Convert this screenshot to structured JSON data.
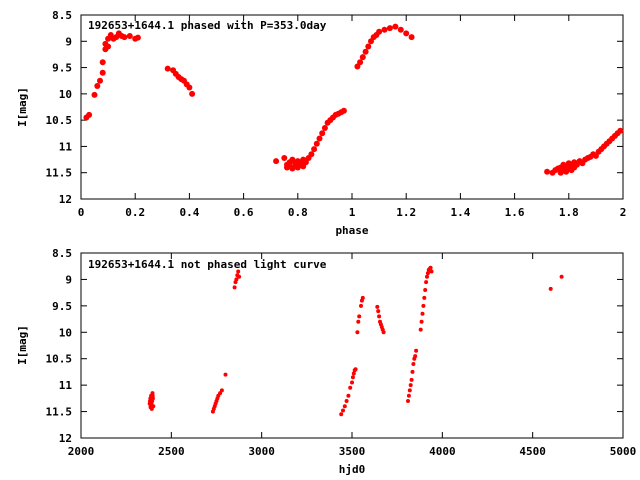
{
  "chart_data": [
    {
      "type": "scatter",
      "title": "192653+1644.1 phased with P=353.0day",
      "xlabel": "phase",
      "ylabel": "I[mag]",
      "xlim": [
        0,
        2
      ],
      "ylim": [
        8.5,
        12
      ],
      "y_inverted": true,
      "xticks": [
        "0",
        "0.2",
        "0.4",
        "0.6",
        "0.8",
        "1",
        "1.2",
        "1.4",
        "1.6",
        "1.8",
        "2"
      ],
      "yticks": [
        "8.5",
        "9",
        "9.5",
        "10",
        "10.5",
        "11",
        "11.5",
        "12"
      ],
      "marker_color": "#ff0000",
      "series": [
        {
          "x": [
            0.02,
            0.03,
            0.05,
            0.06,
            0.07,
            0.08,
            0.08,
            0.09,
            0.09,
            0.1,
            0.1,
            0.11,
            0.12,
            0.13,
            0.14,
            0.15,
            0.16,
            0.18,
            0.2,
            0.21,
            0.32,
            0.34,
            0.35,
            0.36,
            0.37,
            0.38,
            0.39,
            0.4,
            0.41,
            0.72,
            0.75,
            0.76,
            0.76,
            0.77,
            0.77,
            0.78,
            0.78,
            0.79,
            0.79,
            0.8,
            0.8,
            0.81,
            0.81,
            0.82,
            0.82,
            0.83,
            0.84,
            0.85,
            0.86,
            0.87,
            0.88,
            0.89,
            0.9,
            0.91,
            0.92,
            0.93,
            0.94,
            0.95,
            0.96,
            0.97,
            1.02,
            1.03,
            1.04,
            1.05,
            1.06,
            1.07,
            1.08,
            1.09,
            1.1,
            1.12,
            1.14,
            1.16,
            1.18,
            1.2,
            1.22,
            1.72,
            1.74,
            1.75,
            1.76,
            1.77,
            1.77,
            1.78,
            1.78,
            1.79,
            1.79,
            1.8,
            1.8,
            1.81,
            1.81,
            1.82,
            1.82,
            1.83,
            1.84,
            1.85,
            1.86,
            1.87,
            1.88,
            1.89,
            1.9,
            1.91,
            1.92,
            1.93,
            1.94,
            1.95,
            1.96,
            1.97,
            1.98,
            1.99
          ],
          "y": [
            10.45,
            10.4,
            10.02,
            9.85,
            9.75,
            9.6,
            9.4,
            9.15,
            9.05,
            8.95,
            9.1,
            8.88,
            8.95,
            8.92,
            8.85,
            8.9,
            8.92,
            8.9,
            8.95,
            8.93,
            9.52,
            9.55,
            9.62,
            9.68,
            9.72,
            9.75,
            9.82,
            9.88,
            10.0,
            11.28,
            11.22,
            11.35,
            11.4,
            11.3,
            11.38,
            11.25,
            11.42,
            11.32,
            11.38,
            11.28,
            11.4,
            11.35,
            11.3,
            11.38,
            11.25,
            11.3,
            11.22,
            11.15,
            11.05,
            10.95,
            10.85,
            10.75,
            10.65,
            10.55,
            10.5,
            10.45,
            10.4,
            10.38,
            10.35,
            10.32,
            9.48,
            9.4,
            9.3,
            9.2,
            9.1,
            9.0,
            8.92,
            8.88,
            8.82,
            8.78,
            8.75,
            8.72,
            8.78,
            8.85,
            8.92,
            11.48,
            11.5,
            11.45,
            11.42,
            11.5,
            11.4,
            11.45,
            11.35,
            11.48,
            11.4,
            11.42,
            11.32,
            11.45,
            11.38,
            11.4,
            11.3,
            11.35,
            11.28,
            11.32,
            11.25,
            11.22,
            11.2,
            11.15,
            11.18,
            11.1,
            11.05,
            11.0,
            10.95,
            10.9,
            10.85,
            10.8,
            10.75,
            10.7
          ]
        }
      ]
    },
    {
      "type": "scatter",
      "title": "192653+1644.1 not phased light curve",
      "xlabel": "hjd0",
      "ylabel": "I[mag]",
      "xlim": [
        2000,
        5000
      ],
      "ylim": [
        8.5,
        12
      ],
      "y_inverted": true,
      "xticks": [
        "2000",
        "2500",
        "3000",
        "3500",
        "4000",
        "4500",
        "5000"
      ],
      "yticks": [
        "8.5",
        "9",
        "9.5",
        "10",
        "10.5",
        "11",
        "11.5",
        "12"
      ],
      "marker_color": "#ff0000",
      "series": [
        {
          "x": [
            2380,
            2382,
            2384,
            2386,
            2388,
            2390,
            2392,
            2394,
            2396,
            2398,
            2400,
            2385,
            2391,
            2397,
            2730,
            2735,
            2740,
            2745,
            2750,
            2755,
            2760,
            2770,
            2780,
            2800,
            2850,
            2855,
            2860,
            2865,
            2870,
            2875,
            3440,
            3450,
            3460,
            3470,
            3480,
            3490,
            3500,
            3505,
            3510,
            3515,
            3520,
            3530,
            3535,
            3540,
            3550,
            3555,
            3560,
            3640,
            3645,
            3650,
            3655,
            3660,
            3665,
            3670,
            3675,
            3810,
            3815,
            3820,
            3825,
            3830,
            3835,
            3840,
            3845,
            3850,
            3855,
            3880,
            3885,
            3890,
            3895,
            3900,
            3905,
            3910,
            3915,
            3920,
            3925,
            3930,
            3935,
            3940,
            4600,
            4660
          ],
          "y": [
            11.35,
            11.3,
            11.25,
            11.4,
            11.2,
            11.35,
            11.45,
            11.3,
            11.15,
            11.25,
            11.4,
            11.42,
            11.28,
            11.2,
            11.5,
            11.45,
            11.4,
            11.35,
            11.3,
            11.25,
            11.2,
            11.15,
            11.1,
            10.8,
            9.15,
            9.05,
            9.0,
            8.92,
            8.85,
            8.95,
            11.55,
            11.48,
            11.4,
            11.3,
            11.2,
            11.05,
            10.95,
            10.85,
            10.78,
            10.72,
            10.7,
            10.0,
            9.8,
            9.7,
            9.5,
            9.4,
            9.35,
            9.52,
            9.6,
            9.7,
            9.8,
            9.85,
            9.9,
            9.95,
            10.0,
            11.3,
            11.2,
            11.1,
            11.0,
            10.9,
            10.75,
            10.6,
            10.5,
            10.45,
            10.35,
            9.95,
            9.8,
            9.65,
            9.5,
            9.35,
            9.2,
            9.05,
            8.95,
            8.88,
            8.82,
            8.8,
            8.78,
            8.85,
            9.18,
            8.95
          ]
        }
      ]
    }
  ]
}
